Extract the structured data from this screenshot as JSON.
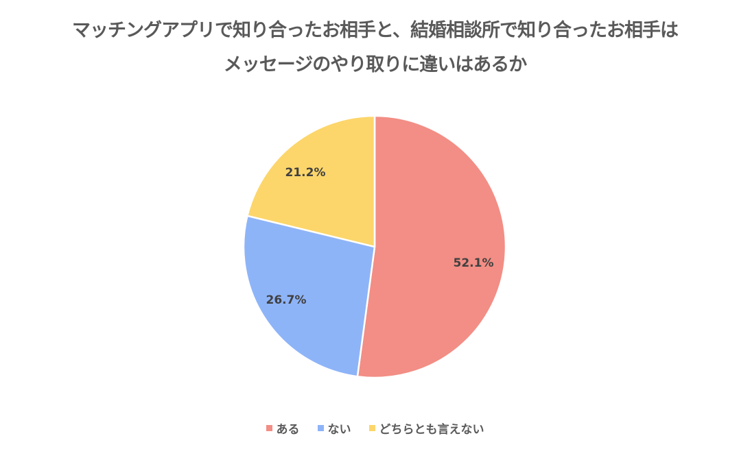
{
  "title": {
    "line1": "マッチングアプリで知り合ったお相手と、結婚相談所で知り合ったお相手は",
    "line2": "メッセージのやり取りに違いはあるか"
  },
  "legend": [
    {
      "label": "ある",
      "color": "#F28E85"
    },
    {
      "label": "ない",
      "color": "#8EB4F8"
    },
    {
      "label": "どちらとも言えない",
      "color": "#FCD66B"
    }
  ],
  "chart_data": {
    "type": "pie",
    "title": "マッチングアプリで知り合ったお相手と、結婚相談所で知り合ったお相手は メッセージのやり取りに違いはあるか",
    "categories": [
      "ある",
      "ない",
      "どちらとも言えない"
    ],
    "values": [
      52.1,
      26.7,
      21.2
    ],
    "labels": [
      "52.1%",
      "26.7%",
      "21.2%"
    ],
    "colors": [
      "#F28E85",
      "#8EB4F8",
      "#FCD66B"
    ],
    "start_angle": "12 o'clock",
    "direction": "clockwise",
    "legend_position": "bottom"
  }
}
